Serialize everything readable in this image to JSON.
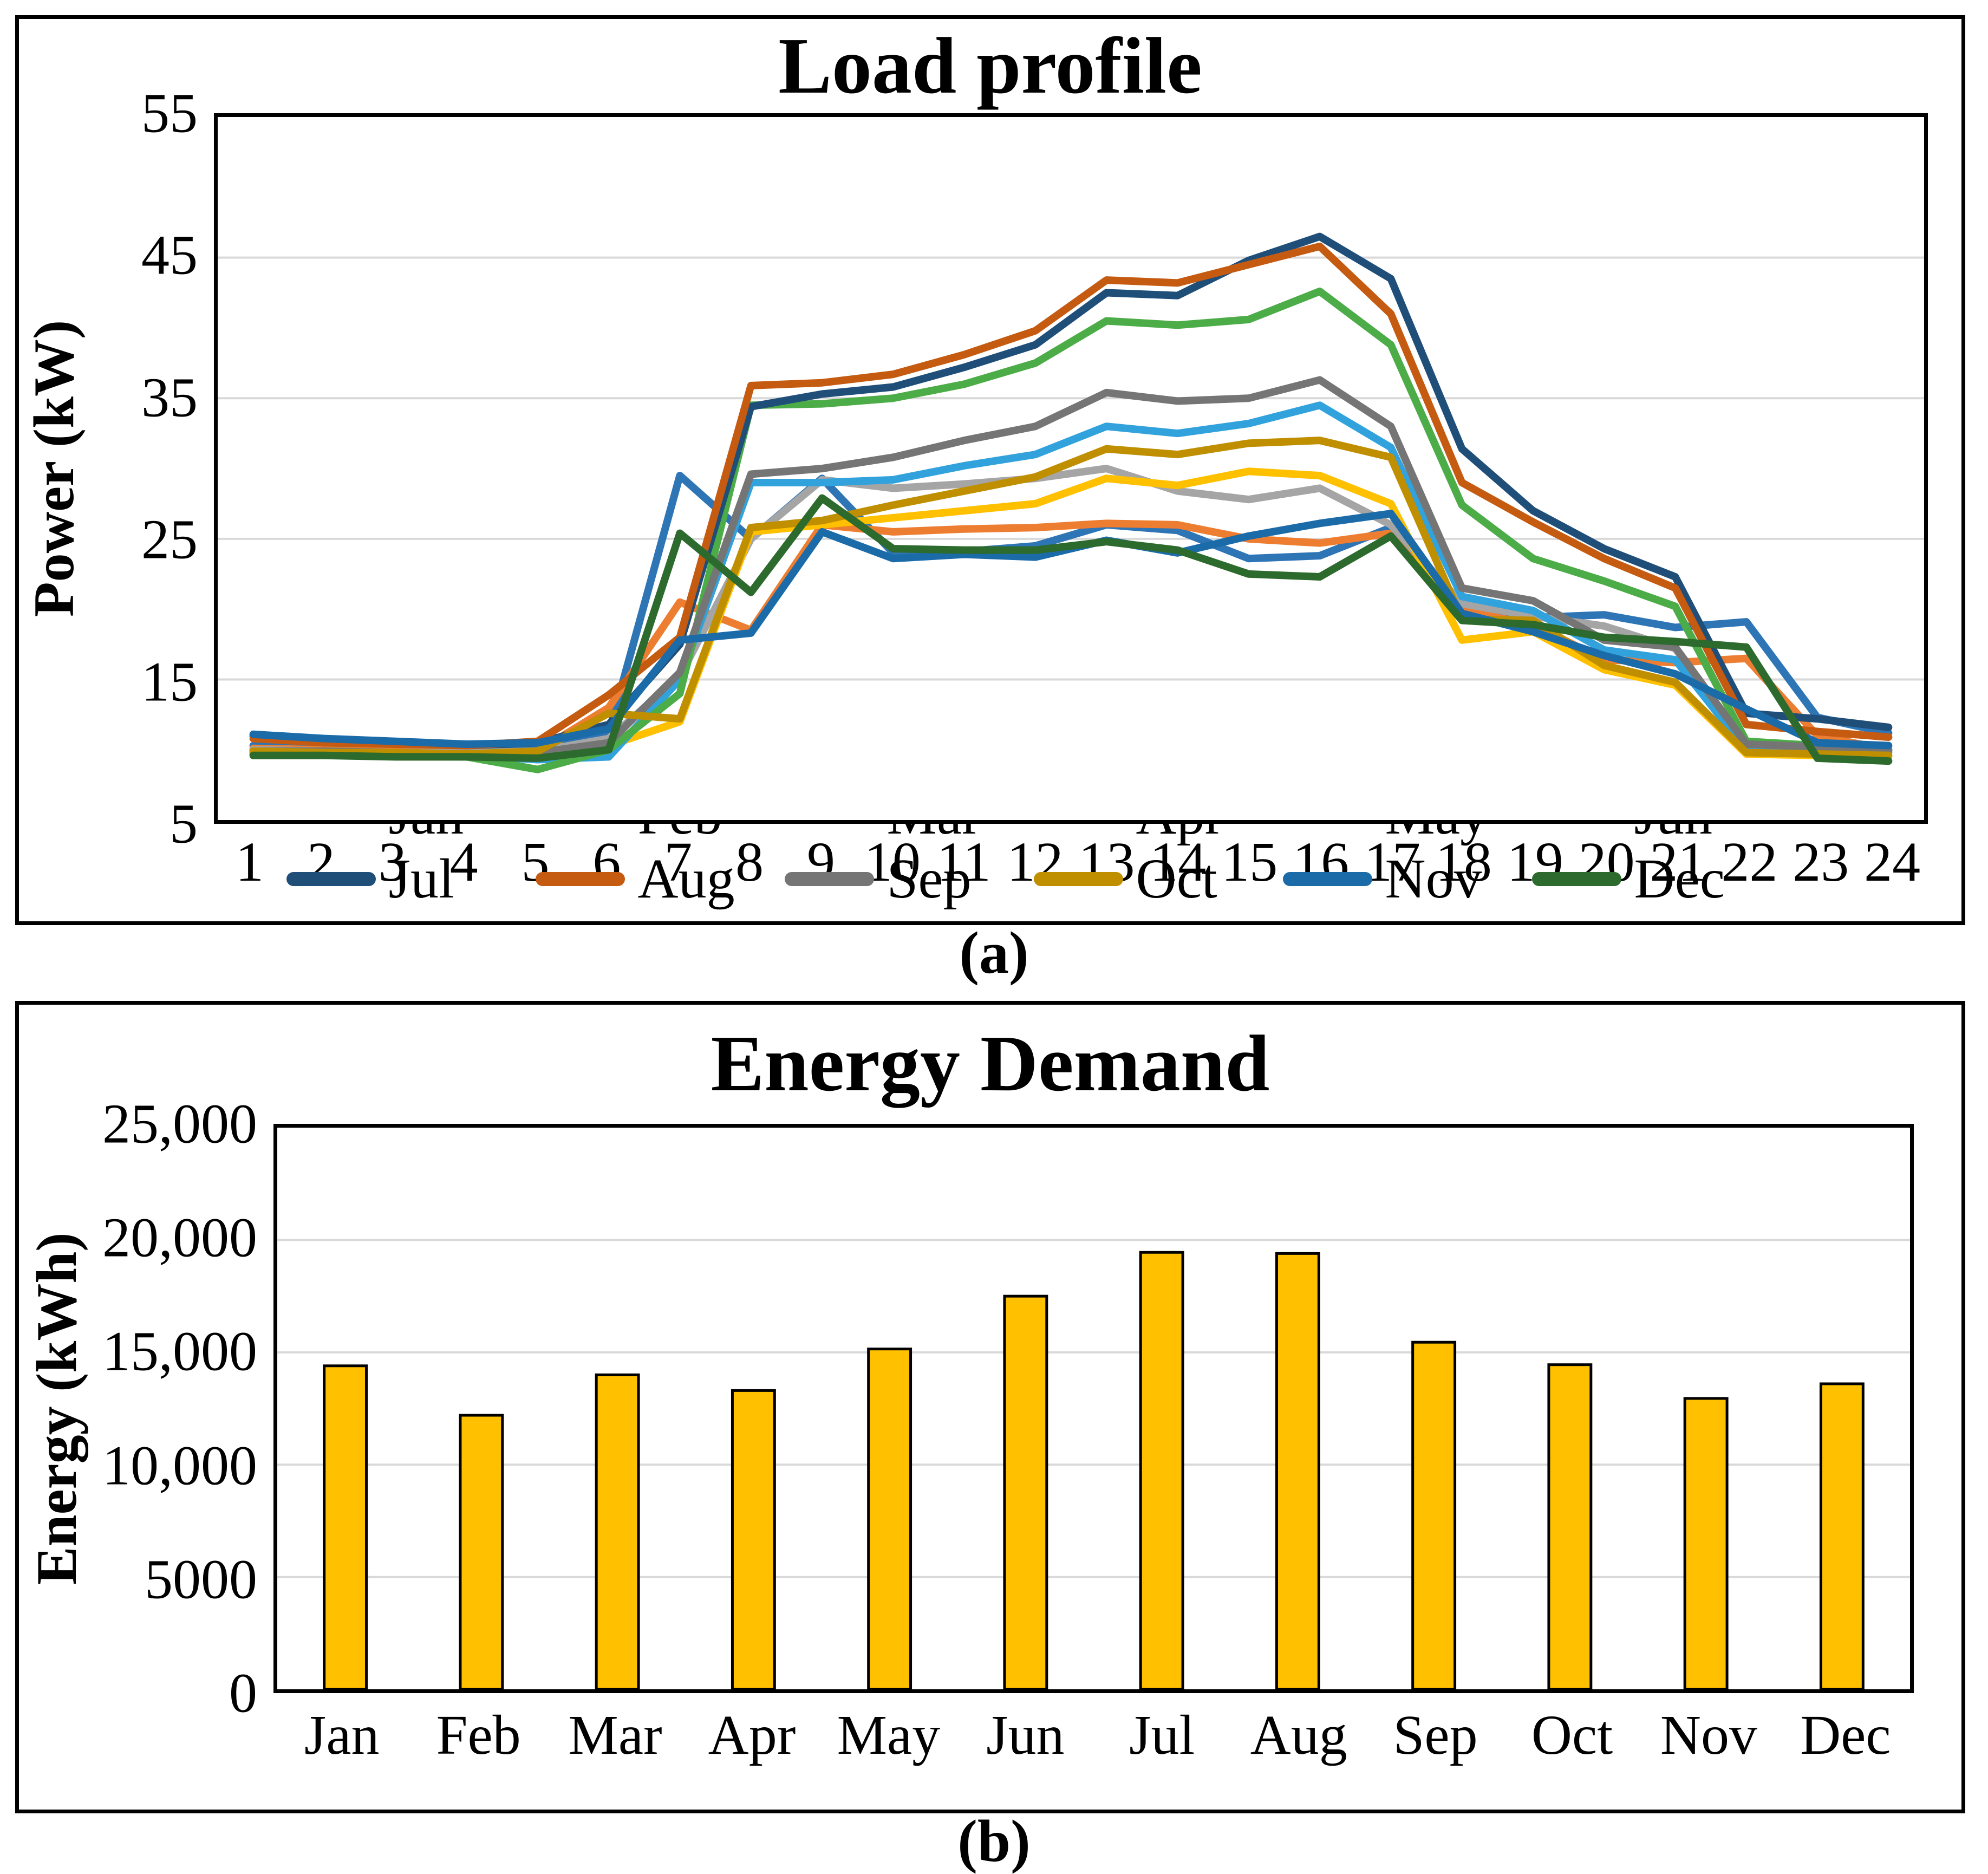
{
  "captions": {
    "a": "(a)",
    "b": "(b)"
  },
  "chart_data": [
    {
      "type": "line",
      "title": "Load profile",
      "ylabel": "Power (kW)",
      "x": [
        1,
        2,
        3,
        4,
        5,
        6,
        7,
        8,
        9,
        10,
        11,
        12,
        13,
        14,
        15,
        16,
        17,
        18,
        19,
        20,
        21,
        22,
        23,
        24
      ],
      "ylim": [
        5,
        55
      ],
      "yticks": [
        5,
        15,
        25,
        35,
        45,
        55
      ],
      "gridlines": [
        15,
        25,
        35,
        45
      ],
      "grid_color": "#D9D9D9",
      "legend_position": "bottom",
      "series": [
        {
          "name": "Jan",
          "color": "#2E75B6",
          "values": [
            10.3,
            10.1,
            10.0,
            9.9,
            10.0,
            11.2,
            29.5,
            25.0,
            29.3,
            24.0,
            24.1,
            24.5,
            26.0,
            25.6,
            23.6,
            23.8,
            25.8,
            20.3,
            19.4,
            19.6,
            18.7,
            19.1,
            12.3,
            11.2
          ]
        },
        {
          "name": "Feb",
          "color": "#ED7D31",
          "values": [
            10.1,
            10.0,
            9.9,
            9.8,
            9.9,
            13.0,
            20.5,
            18.5,
            26.0,
            25.5,
            25.7,
            25.8,
            26.1,
            26.0,
            25.0,
            24.7,
            25.4,
            19.9,
            18.9,
            16.4,
            16.2,
            16.5,
            11.0,
            10.0
          ]
        },
        {
          "name": "Mar",
          "color": "#A5A5A5",
          "values": [
            10.0,
            9.9,
            9.8,
            9.8,
            9.9,
            10.8,
            15.2,
            25.0,
            29.2,
            28.6,
            28.9,
            29.3,
            30.0,
            28.4,
            27.8,
            28.6,
            26.0,
            20.4,
            19.5,
            18.8,
            17.2,
            10.3,
            10.0,
            9.9
          ]
        },
        {
          "name": "Apr",
          "color": "#FFC000",
          "values": [
            9.9,
            9.9,
            9.8,
            9.7,
            9.8,
            10.3,
            12.0,
            25.5,
            26.0,
            26.5,
            27.0,
            27.5,
            29.3,
            28.8,
            29.8,
            29.5,
            27.5,
            17.8,
            18.4,
            15.7,
            14.6,
            9.7,
            9.6,
            9.5
          ]
        },
        {
          "name": "May",
          "color": "#31A2DC",
          "values": [
            9.8,
            9.8,
            9.7,
            9.6,
            9.3,
            9.5,
            15.0,
            29.0,
            29.0,
            29.2,
            30.2,
            31.0,
            33.0,
            32.5,
            33.2,
            34.5,
            31.5,
            20.9,
            19.9,
            17.1,
            16.4,
            10.0,
            9.9,
            9.8
          ]
        },
        {
          "name": "Jun",
          "color": "#4CAC47",
          "values": [
            9.7,
            9.7,
            9.6,
            9.5,
            8.6,
            10.0,
            14.0,
            34.5,
            34.6,
            35.0,
            36.0,
            37.5,
            40.5,
            40.2,
            40.6,
            42.6,
            38.8,
            27.4,
            23.6,
            22.0,
            20.2,
            10.6,
            10.3,
            10.0
          ]
        },
        {
          "name": "Jul",
          "color": "#1F4E79",
          "values": [
            11.0,
            10.7,
            10.5,
            10.3,
            10.5,
            11.8,
            17.5,
            34.4,
            35.3,
            35.8,
            37.2,
            38.8,
            42.5,
            42.3,
            44.8,
            46.5,
            43.5,
            31.4,
            27.0,
            24.3,
            22.3,
            12.6,
            12.2,
            11.6
          ]
        },
        {
          "name": "Aug",
          "color": "#C55A11",
          "values": [
            10.8,
            10.5,
            10.4,
            10.3,
            10.6,
            13.9,
            18.0,
            35.9,
            36.1,
            36.7,
            38.1,
            39.8,
            43.4,
            43.2,
            44.5,
            45.8,
            41.0,
            29.0,
            26.2,
            23.6,
            21.5,
            11.8,
            11.3,
            10.9
          ]
        },
        {
          "name": "Sep",
          "color": "#757575",
          "values": [
            9.9,
            9.9,
            9.8,
            9.7,
            9.8,
            10.5,
            15.5,
            29.6,
            30.0,
            30.8,
            32.0,
            33.0,
            35.4,
            34.8,
            35.0,
            36.3,
            33.0,
            21.5,
            20.6,
            17.8,
            17.3,
            10.4,
            10.2,
            10.0
          ]
        },
        {
          "name": "Oct",
          "color": "#BF8F00",
          "values": [
            9.9,
            9.8,
            9.8,
            9.7,
            9.9,
            12.6,
            12.2,
            25.8,
            26.3,
            27.4,
            28.4,
            29.4,
            31.4,
            31.0,
            31.8,
            32.0,
            30.8,
            19.3,
            19.2,
            16.0,
            14.8,
            9.8,
            9.7,
            9.6
          ]
        },
        {
          "name": "Nov",
          "color": "#1B6BA9",
          "values": [
            11.1,
            10.8,
            10.6,
            10.4,
            10.5,
            11.5,
            17.8,
            18.3,
            25.5,
            23.6,
            23.9,
            23.7,
            24.9,
            24.0,
            25.2,
            26.1,
            26.8,
            19.7,
            18.4,
            16.7,
            15.4,
            12.9,
            10.5,
            10.3
          ]
        },
        {
          "name": "Dec",
          "color": "#2D6A2D",
          "values": [
            9.6,
            9.6,
            9.5,
            9.5,
            9.4,
            10.0,
            25.4,
            21.2,
            27.9,
            24.3,
            24.2,
            24.2,
            24.8,
            24.2,
            22.5,
            22.3,
            25.2,
            19.2,
            18.9,
            18.0,
            17.7,
            17.3,
            9.4,
            9.2
          ]
        }
      ]
    },
    {
      "type": "bar",
      "title": "Energy Demand",
      "ylabel": "Energy (kWh)",
      "categories": [
        "Jan",
        "Feb",
        "Mar",
        "Apr",
        "May",
        "Jun",
        "Jul",
        "Aug",
        "Sep",
        "Oct",
        "Nov",
        "Dec"
      ],
      "values": [
        14400,
        12200,
        14000,
        13300,
        15150,
        17500,
        19450,
        19400,
        15450,
        14450,
        12950,
        13600
      ],
      "ylim": [
        0,
        25000
      ],
      "yticks": [
        0,
        5000,
        10000,
        15000,
        20000,
        25000
      ],
      "ytick_labels": [
        "0",
        "5000",
        "10,000",
        "15,000",
        "20,000",
        "25,000"
      ],
      "gridlines": [
        5000,
        10000,
        15000,
        20000
      ],
      "grid_color": "#D9D9D9",
      "bar_color": "#FFC000",
      "bar_border": "#000000",
      "bar_width_frac": 0.31
    }
  ]
}
